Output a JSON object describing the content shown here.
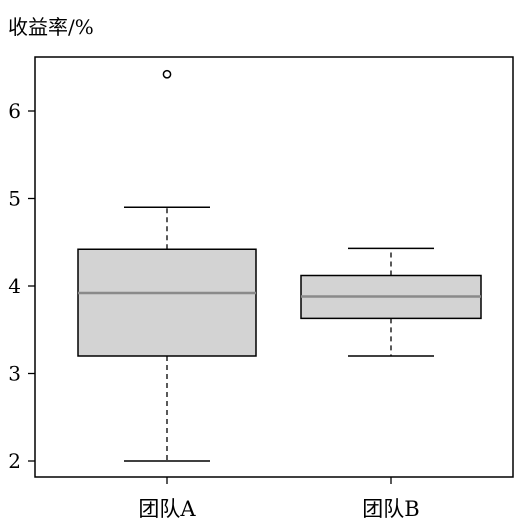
{
  "chart_data": {
    "type": "box",
    "title": "",
    "ylabel": "收益率/%",
    "xlabel": "",
    "ylim": [
      1.9,
      6.9
    ],
    "yticks": [
      2,
      3,
      4,
      5,
      6
    ],
    "grid": false,
    "categories": [
      "团队A",
      "团队B"
    ],
    "boxes": [
      {
        "name": "团队A",
        "whisker_low": 2.0,
        "q1": 3.2,
        "median": 3.92,
        "q3": 4.42,
        "whisker_high": 4.9,
        "outliers": [
          6.42
        ]
      },
      {
        "name": "团队B",
        "whisker_low": 3.2,
        "q1": 3.63,
        "median": 3.88,
        "q3": 4.12,
        "whisker_high": 4.43,
        "outliers": []
      }
    ],
    "colors": {
      "box_fill": "#d3d3d3",
      "median_line": "#8a8a8a",
      "frame": "#000000"
    }
  }
}
